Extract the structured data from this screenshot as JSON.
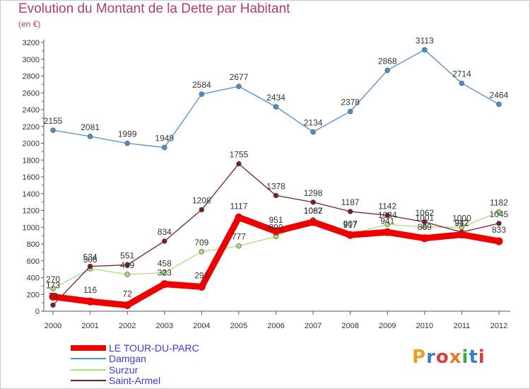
{
  "header": {
    "title": "Evolution du Montant de la Dette par Habitant",
    "subtitle": "(en €)"
  },
  "colors": {
    "title": "#b23b7a",
    "legend_text": "#3b3bd9",
    "axis": "#555555",
    "grid": "#e3e3e3"
  },
  "logo": {
    "text": "Proxiti",
    "letter_colors": [
      "#e8a020",
      "#3c7fc2",
      "#d83c3c",
      "#e87a20",
      "#3ca83c",
      "#3c7fc2",
      "#d83c3c"
    ]
  },
  "chart_data": {
    "type": "line",
    "title": "Evolution du Montant de la Dette par Habitant",
    "subtitle": "(en €)",
    "xlabel": "",
    "ylabel": "",
    "x": [
      "2000",
      "2001",
      "2002",
      "2003",
      "2004",
      "2005",
      "2006",
      "2007",
      "2008",
      "2009",
      "2010",
      "2011",
      "2012"
    ],
    "ylim": [
      0,
      3200
    ],
    "yticks": [
      0,
      200,
      400,
      600,
      800,
      1000,
      1200,
      1400,
      1600,
      1800,
      2000,
      2200,
      2400,
      2600,
      2800,
      3000,
      3200
    ],
    "grid": false,
    "legend_position": "bottom-left",
    "series": [
      {
        "name": "LE TOUR-DU-PARC",
        "color": "#ee0000",
        "values": [
          173,
          116,
          72,
          323,
          291,
          1117,
          951,
          1062,
          907,
          941,
          869,
          912,
          833
        ]
      },
      {
        "name": "Damgan",
        "color": "#4a90d0",
        "values": [
          2155,
          2081,
          1999,
          1949,
          2584,
          2677,
          2434,
          2134,
          2378,
          2868,
          3113,
          2714,
          2464
        ]
      },
      {
        "name": "Surzur",
        "color": "#a9e07a",
        "values": [
          270,
          506,
          439,
          458,
          709,
          777,
          890,
          1087,
          917,
          1034,
          1001,
          1000,
          1182
        ]
      },
      {
        "name": "Saint-Armel",
        "color": "#7a1f1f",
        "values": [
          73,
          534,
          551,
          834,
          1208,
          1755,
          1378,
          1298,
          1187,
          1142,
          1062,
          942,
          1045
        ]
      }
    ]
  }
}
